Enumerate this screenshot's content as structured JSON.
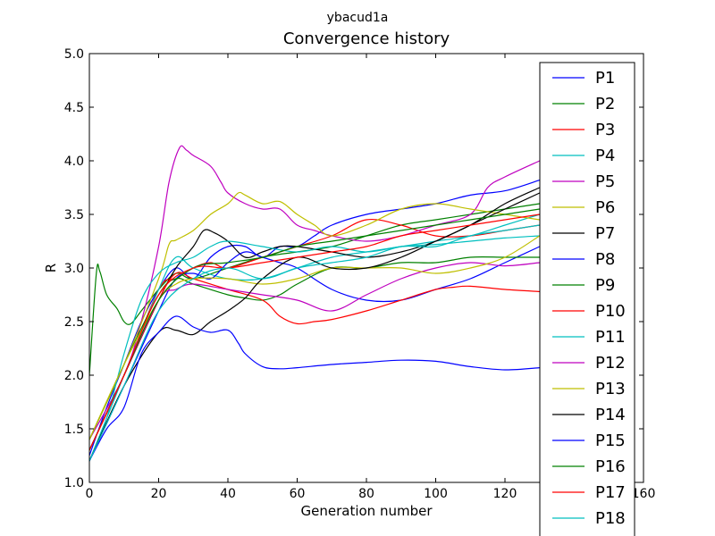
{
  "chart_data": {
    "type": "line",
    "suptitle": "ybacud1a",
    "title": "Convergence history",
    "xlabel": "Generation number",
    "ylabel": "R",
    "xlim": [
      0,
      160
    ],
    "ylim": [
      1.0,
      5.0
    ],
    "xticks": [
      "0",
      "20",
      "40",
      "60",
      "80",
      "100",
      "120",
      "160"
    ],
    "yticks": [
      "1.0",
      "1.5",
      "2.0",
      "2.5",
      "3.0",
      "3.5",
      "4.0",
      "4.5",
      "5.0"
    ],
    "grid": false,
    "legend_position": "right",
    "series": [
      {
        "name": "P1",
        "color": "#0000ff",
        "x": [
          0,
          5,
          10,
          15,
          20,
          25,
          30,
          35,
          40,
          45,
          50,
          55,
          60,
          65,
          70,
          80,
          90,
          100,
          110,
          120,
          130
        ],
        "y": [
          1.25,
          1.7,
          2.1,
          2.5,
          2.8,
          3.0,
          2.9,
          3.1,
          3.2,
          3.2,
          3.1,
          3.2,
          3.2,
          3.3,
          3.4,
          3.5,
          3.55,
          3.6,
          3.68,
          3.72,
          3.82
        ]
      },
      {
        "name": "P2",
        "color": "#008000",
        "x": [
          0,
          2,
          3,
          5,
          8,
          10,
          12,
          15,
          20,
          25,
          30,
          40,
          50,
          60,
          70,
          80,
          90,
          100,
          110,
          120,
          130
        ],
        "y": [
          2.0,
          2.95,
          2.97,
          2.75,
          2.62,
          2.5,
          2.48,
          2.6,
          2.8,
          2.95,
          2.9,
          3.0,
          3.1,
          3.15,
          3.2,
          3.3,
          3.4,
          3.45,
          3.5,
          3.55,
          3.6
        ]
      },
      {
        "name": "P3",
        "color": "#ff0000",
        "x": [
          0,
          10,
          20,
          25,
          30,
          35,
          40,
          50,
          60,
          70,
          80,
          90,
          100,
          110,
          120,
          130
        ],
        "y": [
          1.3,
          2.0,
          2.8,
          2.9,
          3.0,
          3.05,
          3.0,
          3.1,
          3.2,
          3.3,
          3.45,
          3.4,
          3.3,
          3.3,
          3.35,
          3.4
        ]
      },
      {
        "name": "P4",
        "color": "#00bfbf",
        "x": [
          0,
          10,
          20,
          25,
          30,
          40,
          50,
          60,
          70,
          80,
          90,
          100,
          110,
          120,
          130
        ],
        "y": [
          1.2,
          2.0,
          2.8,
          3.1,
          3.0,
          2.9,
          2.9,
          3.0,
          3.1,
          3.15,
          3.2,
          3.25,
          3.3,
          3.4,
          3.5
        ]
      },
      {
        "name": "P5",
        "color": "#bf00bf",
        "x": [
          0,
          10,
          15,
          20,
          23,
          26,
          28,
          30,
          35,
          38,
          40,
          45,
          50,
          55,
          60,
          65,
          70,
          80,
          90,
          100,
          110,
          115,
          120,
          130
        ],
        "y": [
          1.4,
          2.0,
          2.5,
          3.2,
          3.8,
          4.12,
          4.1,
          4.05,
          3.95,
          3.8,
          3.7,
          3.6,
          3.55,
          3.55,
          3.4,
          3.35,
          3.3,
          3.25,
          3.3,
          3.4,
          3.5,
          3.75,
          3.85,
          4.0
        ]
      },
      {
        "name": "P6",
        "color": "#bfbf00",
        "x": [
          0,
          10,
          20,
          23,
          25,
          30,
          35,
          40,
          43,
          45,
          50,
          55,
          60,
          65,
          70,
          80,
          90,
          100,
          110,
          120,
          130
        ],
        "y": [
          1.4,
          2.1,
          2.9,
          3.22,
          3.26,
          3.35,
          3.5,
          3.6,
          3.7,
          3.68,
          3.6,
          3.62,
          3.5,
          3.4,
          3.3,
          3.4,
          3.55,
          3.6,
          3.55,
          3.5,
          3.45
        ]
      },
      {
        "name": "P7",
        "color": "#000000",
        "x": [
          0,
          10,
          20,
          25,
          30,
          33,
          36,
          40,
          45,
          50,
          55,
          60,
          70,
          80,
          90,
          100,
          110,
          120,
          130
        ],
        "y": [
          1.3,
          2.0,
          2.7,
          3.0,
          3.2,
          3.35,
          3.33,
          3.25,
          3.1,
          3.15,
          3.2,
          3.2,
          3.15,
          3.1,
          3.15,
          3.25,
          3.4,
          3.55,
          3.7
        ]
      },
      {
        "name": "P8",
        "color": "#0000ff",
        "x": [
          0,
          10,
          20,
          25,
          30,
          35,
          40,
          45,
          50,
          55,
          60,
          70,
          80,
          90,
          100,
          110,
          120,
          130
        ],
        "y": [
          1.2,
          1.9,
          2.6,
          2.9,
          2.95,
          2.9,
          3.05,
          3.15,
          3.1,
          3.05,
          3.0,
          2.8,
          2.7,
          2.7,
          2.8,
          2.9,
          3.05,
          3.2
        ]
      },
      {
        "name": "P9",
        "color": "#008000",
        "x": [
          0,
          10,
          20,
          25,
          30,
          40,
          45,
          50,
          55,
          60,
          70,
          80,
          90,
          100,
          110,
          120,
          130
        ],
        "y": [
          1.4,
          2.1,
          2.75,
          2.9,
          2.85,
          2.75,
          2.72,
          2.7,
          2.75,
          2.85,
          3.0,
          3.0,
          3.05,
          3.05,
          3.1,
          3.1,
          3.1
        ]
      },
      {
        "name": "P10",
        "color": "#ff0000",
        "x": [
          0,
          10,
          20,
          25,
          30,
          40,
          50,
          55,
          60,
          65,
          70,
          80,
          90,
          100,
          105,
          110,
          120,
          130
        ],
        "y": [
          1.3,
          2.0,
          2.7,
          2.95,
          2.9,
          2.8,
          2.7,
          2.55,
          2.48,
          2.5,
          2.52,
          2.6,
          2.7,
          2.8,
          2.82,
          2.83,
          2.8,
          2.78
        ]
      },
      {
        "name": "P11",
        "color": "#00bfbf",
        "x": [
          0,
          5,
          10,
          15,
          20,
          25,
          30,
          35,
          40,
          50,
          60,
          70,
          80,
          90,
          100,
          110,
          120,
          130
        ],
        "y": [
          1.2,
          1.6,
          2.2,
          2.7,
          2.95,
          3.05,
          3.1,
          3.2,
          3.25,
          3.2,
          3.15,
          3.2,
          3.15,
          3.2,
          3.22,
          3.25,
          3.28,
          3.3
        ]
      },
      {
        "name": "P12",
        "color": "#bf00bf",
        "x": [
          0,
          10,
          20,
          25,
          30,
          40,
          50,
          60,
          70,
          80,
          90,
          100,
          110,
          120,
          130
        ],
        "y": [
          1.3,
          2.0,
          2.7,
          2.8,
          2.85,
          2.8,
          2.75,
          2.7,
          2.6,
          2.75,
          2.9,
          3.0,
          3.05,
          3.02,
          3.05
        ]
      },
      {
        "name": "P13",
        "color": "#bfbf00",
        "x": [
          0,
          10,
          20,
          25,
          30,
          40,
          50,
          60,
          70,
          80,
          90,
          100,
          110,
          120,
          130
        ],
        "y": [
          1.4,
          2.1,
          2.7,
          2.85,
          2.9,
          2.9,
          2.85,
          2.9,
          3.0,
          3.0,
          3.0,
          2.95,
          3.0,
          3.1,
          3.3
        ]
      },
      {
        "name": "P14",
        "color": "#000000",
        "x": [
          0,
          10,
          20,
          25,
          30,
          35,
          40,
          45,
          50,
          60,
          70,
          80,
          90,
          100,
          110,
          120,
          130
        ],
        "y": [
          1.2,
          1.9,
          2.4,
          2.42,
          2.38,
          2.5,
          2.6,
          2.72,
          2.9,
          3.1,
          3.0,
          3.0,
          3.1,
          3.25,
          3.4,
          3.6,
          3.75
        ]
      },
      {
        "name": "P15",
        "color": "#0000ff",
        "x": [
          0,
          5,
          10,
          15,
          20,
          25,
          30,
          35,
          40,
          43,
          45,
          50,
          55,
          60,
          70,
          80,
          90,
          100,
          110,
          120,
          130
        ],
        "y": [
          1.2,
          1.5,
          1.7,
          2.2,
          2.4,
          2.55,
          2.45,
          2.4,
          2.42,
          2.3,
          2.2,
          2.08,
          2.06,
          2.07,
          2.1,
          2.12,
          2.14,
          2.13,
          2.08,
          2.05,
          2.07
        ]
      },
      {
        "name": "P16",
        "color": "#008000",
        "x": [
          0,
          10,
          20,
          30,
          40,
          50,
          60,
          70,
          80,
          90,
          100,
          110,
          120,
          130
        ],
        "y": [
          1.3,
          2.0,
          2.7,
          3.0,
          3.05,
          3.1,
          3.2,
          3.25,
          3.3,
          3.35,
          3.4,
          3.45,
          3.5,
          3.55
        ]
      },
      {
        "name": "P17",
        "color": "#ff0000",
        "x": [
          0,
          10,
          20,
          30,
          40,
          50,
          60,
          70,
          80,
          90,
          100,
          110,
          120,
          130
        ],
        "y": [
          1.3,
          2.0,
          2.75,
          3.0,
          3.0,
          3.05,
          3.1,
          3.15,
          3.2,
          3.3,
          3.35,
          3.4,
          3.45,
          3.5
        ]
      },
      {
        "name": "P18",
        "color": "#00bfbf",
        "x": [
          0,
          10,
          20,
          30,
          40,
          50,
          60,
          70,
          80,
          90,
          100,
          110,
          120,
          130
        ],
        "y": [
          1.2,
          1.9,
          2.6,
          2.9,
          3.0,
          2.9,
          3.0,
          3.05,
          3.1,
          3.2,
          3.2,
          3.3,
          3.35,
          3.4
        ]
      }
    ]
  }
}
